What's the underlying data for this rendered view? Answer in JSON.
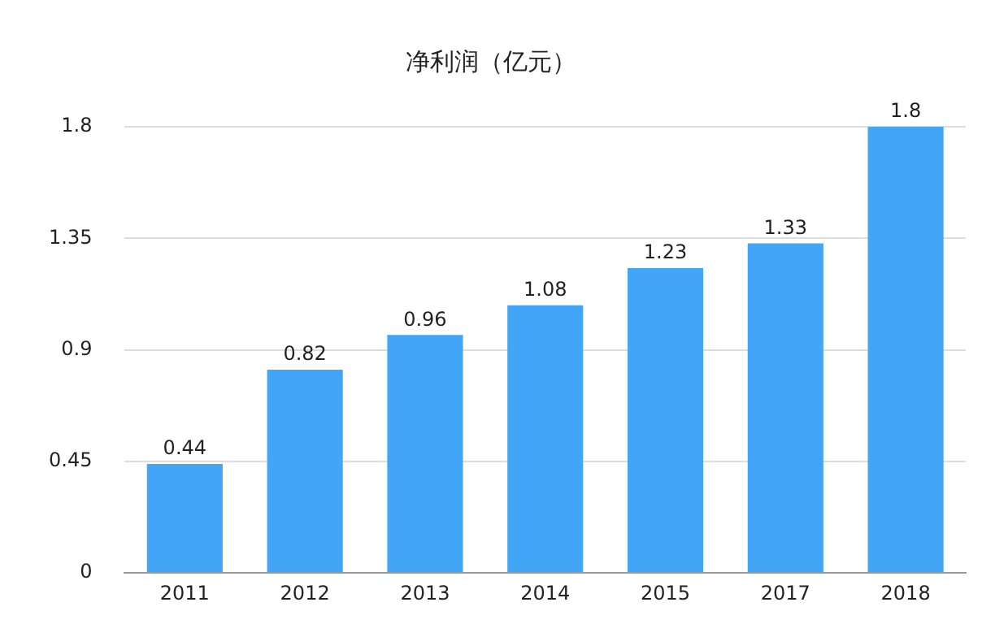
{
  "chart_data": {
    "type": "bar",
    "title": "净利润（亿元）",
    "categories": [
      "2011",
      "2012",
      "2013",
      "2014",
      "2015",
      "2017",
      "2018"
    ],
    "values": [
      0.44,
      0.82,
      0.96,
      1.08,
      1.23,
      1.33,
      1.8
    ],
    "color": "#42a5f5",
    "ylim": [
      0,
      1.8
    ],
    "yticks": [
      0,
      0.45,
      0.9,
      1.35,
      1.8
    ],
    "grid": "y",
    "data_labels": true,
    "legend": false
  }
}
